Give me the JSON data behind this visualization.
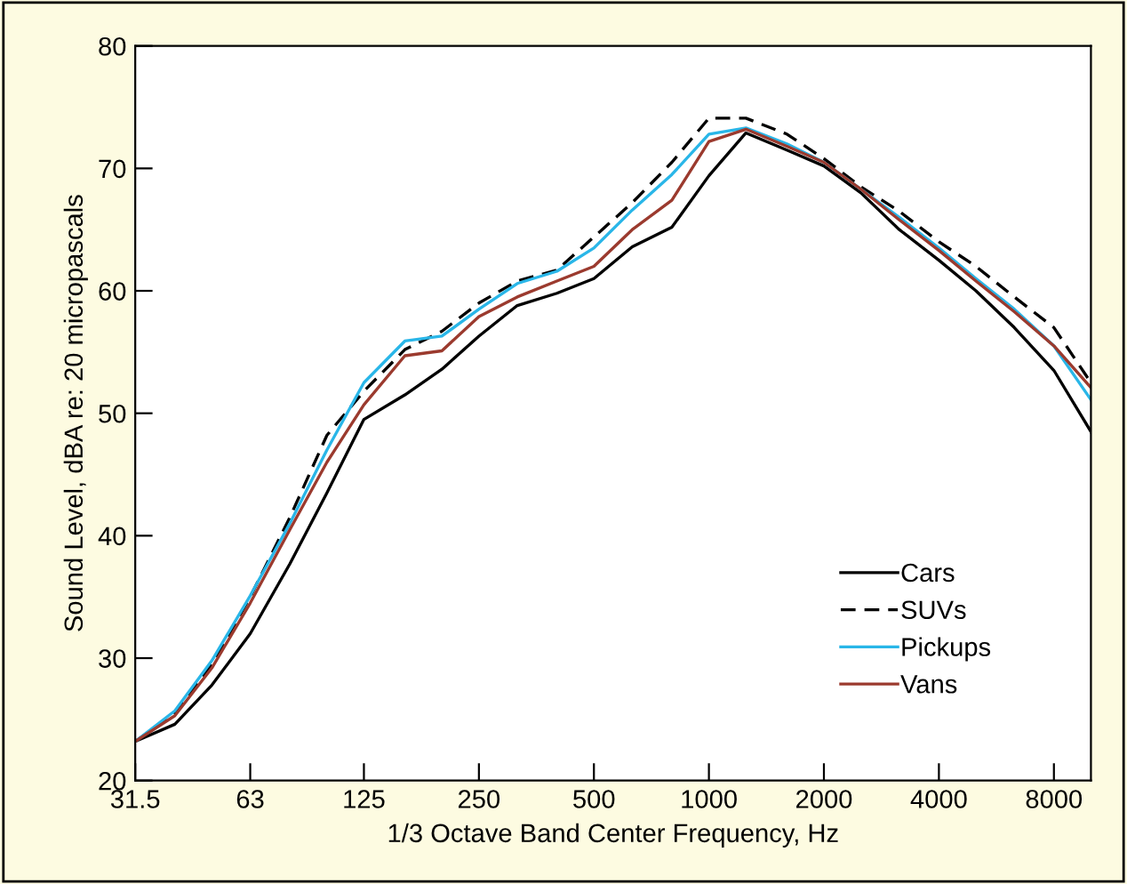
{
  "chart_data": {
    "type": "line",
    "xlabel": "1/3 Octave Band Center Frequency, Hz",
    "ylabel": "Sound Level, dBA re: 20 micropascals",
    "x": [
      31.5,
      40,
      50,
      63,
      80,
      100,
      125,
      160,
      200,
      250,
      315,
      400,
      500,
      630,
      800,
      1000,
      1250,
      1600,
      2000,
      2500,
      3150,
      4000,
      5000,
      6300,
      8000,
      10000
    ],
    "series": [
      {
        "name": "Cars",
        "color": "#000000",
        "line_style": "solid",
        "values": [
          23.2,
          24.6,
          27.8,
          32.0,
          37.7,
          43.5,
          49.5,
          51.5,
          53.6,
          56.3,
          58.8,
          59.8,
          61.0,
          63.6,
          65.2,
          69.4,
          72.9,
          71.5,
          70.2,
          68.0,
          65.0,
          62.5,
          60.0,
          57.0,
          53.5,
          48.5
        ]
      },
      {
        "name": "SUVs",
        "color": "#000000",
        "line_style": "dashed",
        "values": [
          23.2,
          25.5,
          29.5,
          35.0,
          41.5,
          48.2,
          51.8,
          55.2,
          56.7,
          59.0,
          60.8,
          61.7,
          64.4,
          67.2,
          70.5,
          74.1,
          74.1,
          72.8,
          70.8,
          68.5,
          66.5,
          64.0,
          62.0,
          59.5,
          57.0,
          52.5
        ]
      },
      {
        "name": "Pickups",
        "color": "#29b6e8",
        "line_style": "solid",
        "values": [
          23.2,
          25.7,
          29.8,
          35.1,
          41.0,
          47.0,
          52.5,
          55.9,
          56.3,
          58.5,
          60.6,
          61.6,
          63.5,
          66.6,
          69.5,
          72.8,
          73.3,
          72.0,
          70.5,
          68.3,
          66.0,
          63.5,
          61.0,
          58.5,
          55.5,
          51.1
        ]
      },
      {
        "name": "Vans",
        "color": "#9b3a2e",
        "line_style": "solid",
        "values": [
          23.2,
          25.3,
          29.2,
          34.5,
          40.5,
          46.0,
          50.7,
          54.7,
          55.1,
          57.9,
          59.5,
          60.8,
          62.0,
          65.0,
          67.4,
          72.2,
          73.2,
          71.8,
          70.5,
          68.3,
          65.8,
          63.3,
          60.8,
          58.3,
          55.5,
          52.1
        ]
      }
    ],
    "log": "x",
    "xlim": [
      31.5,
      10000
    ],
    "xticks": [
      31.5,
      63,
      125,
      250,
      500,
      1000,
      2000,
      4000,
      8000
    ],
    "ylim": [
      20,
      80
    ],
    "yticks": [
      20,
      30,
      40,
      50,
      60,
      70,
      80
    ],
    "grid": false,
    "legend": "bottom right",
    "marker": "none"
  }
}
